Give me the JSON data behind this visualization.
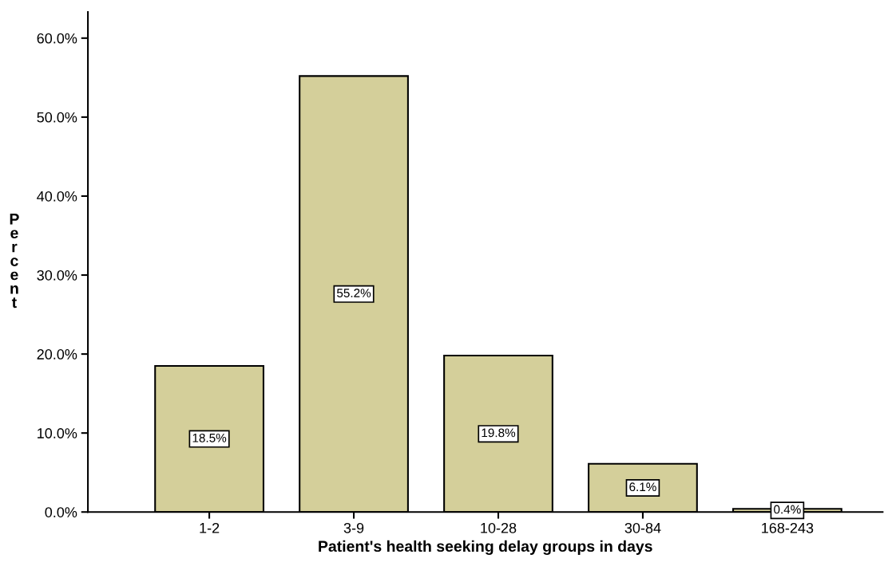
{
  "chart_data": {
    "type": "bar",
    "xlabel": "Patient's health seeking delay groups in days",
    "ylabel": "Percent",
    "categories": [
      "1-2",
      "3-9",
      "10-28",
      "30-84",
      "168-243"
    ],
    "values": [
      18.5,
      55.2,
      19.8,
      6.1,
      0.4
    ],
    "value_labels": [
      "18.5%",
      "55.2%",
      "19.8%",
      "6.1%",
      "0.4%"
    ],
    "color": "#d4cf9a",
    "ylim": [
      0,
      63.3
    ],
    "yticks": [
      {
        "value": 0,
        "label": "0.0%"
      },
      {
        "value": 10,
        "label": "10.0%"
      },
      {
        "value": 20,
        "label": "20.0%"
      },
      {
        "value": 30,
        "label": "30.0%"
      },
      {
        "value": 40,
        "label": "40.0%"
      },
      {
        "value": 50,
        "label": "50.0%"
      },
      {
        "value": 60,
        "label": "60.0%"
      }
    ],
    "grid": false,
    "legend": false
  }
}
